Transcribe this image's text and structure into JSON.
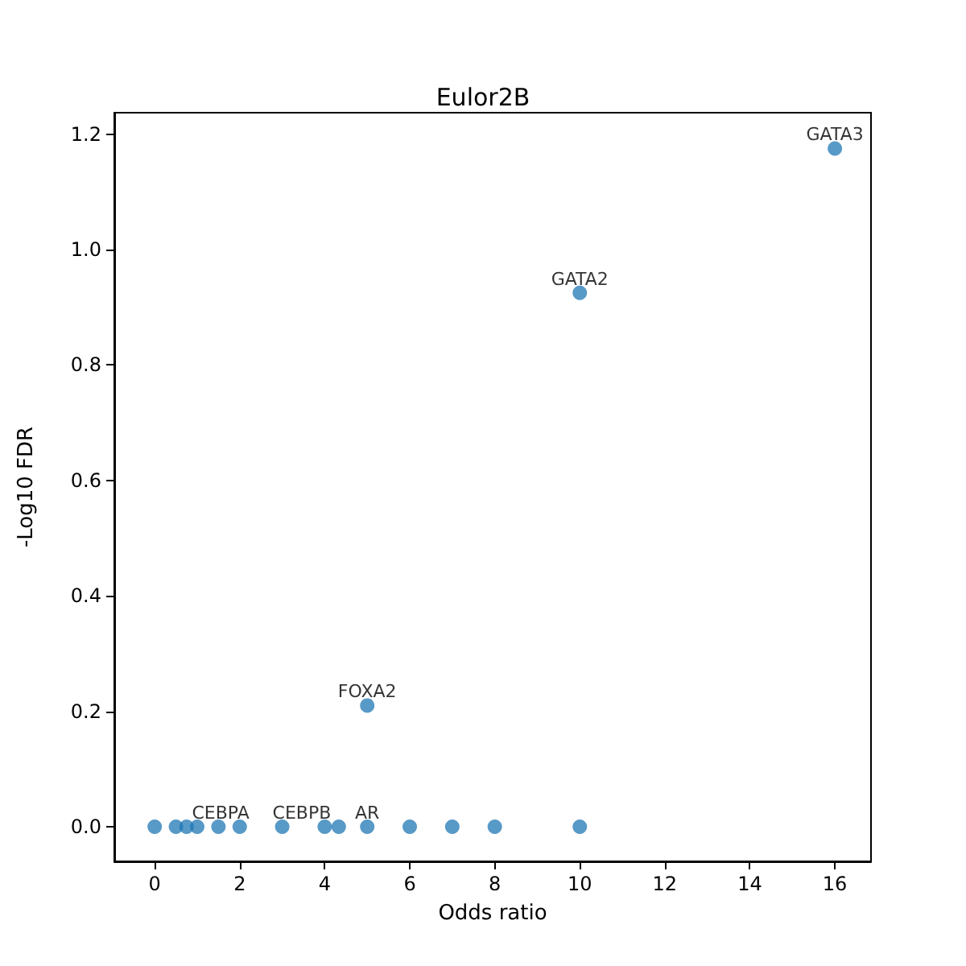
{
  "chart_data": {
    "type": "scatter",
    "title": "Eulor2B",
    "xlabel": "Odds ratio",
    "ylabel": "-Log10 FDR",
    "x": [
      0,
      0.5,
      0.75,
      1,
      1.5,
      2,
      3,
      4,
      4.33,
      5,
      6,
      7,
      8,
      10,
      5,
      10,
      16
    ],
    "series": [
      {
        "color": "#1f77b4",
        "values": [
          0,
          0,
          0,
          0,
          0,
          0,
          0,
          0,
          0,
          0,
          0,
          0,
          0,
          0,
          0.21,
          0.925,
          1.175
        ]
      }
    ],
    "xlim": [
      -0.95,
      16.85
    ],
    "xticks": [
      0,
      2,
      4,
      6,
      8,
      10,
      12,
      14,
      16
    ],
    "ylim": [
      -0.06,
      1.237
    ],
    "yticks": [
      {
        "value": 0,
        "label": "0.0"
      },
      {
        "value": 0.2,
        "label": "0.2"
      },
      {
        "value": 0.4,
        "label": "0.4"
      },
      {
        "value": 0.6,
        "label": "0.6"
      },
      {
        "value": 0.8,
        "label": "0.8"
      },
      {
        "value": 1,
        "label": "1.0"
      },
      {
        "value": 1.2,
        "label": "1.2"
      }
    ],
    "annotations": [
      {
        "text": "CEBPA",
        "x": 2,
        "y": 0
      },
      {
        "text": "CEBPB",
        "x": 3,
        "y": 0
      },
      {
        "text": "AR",
        "x": 5,
        "y": 0
      },
      {
        "text": "FOXA2",
        "x": 5,
        "y": 0.21
      },
      {
        "text": "GATA2",
        "x": 10,
        "y": 0.925
      },
      {
        "text": "GATA3",
        "x": 16,
        "y": 1.175
      }
    ],
    "grid": false,
    "marker": "circle"
  }
}
